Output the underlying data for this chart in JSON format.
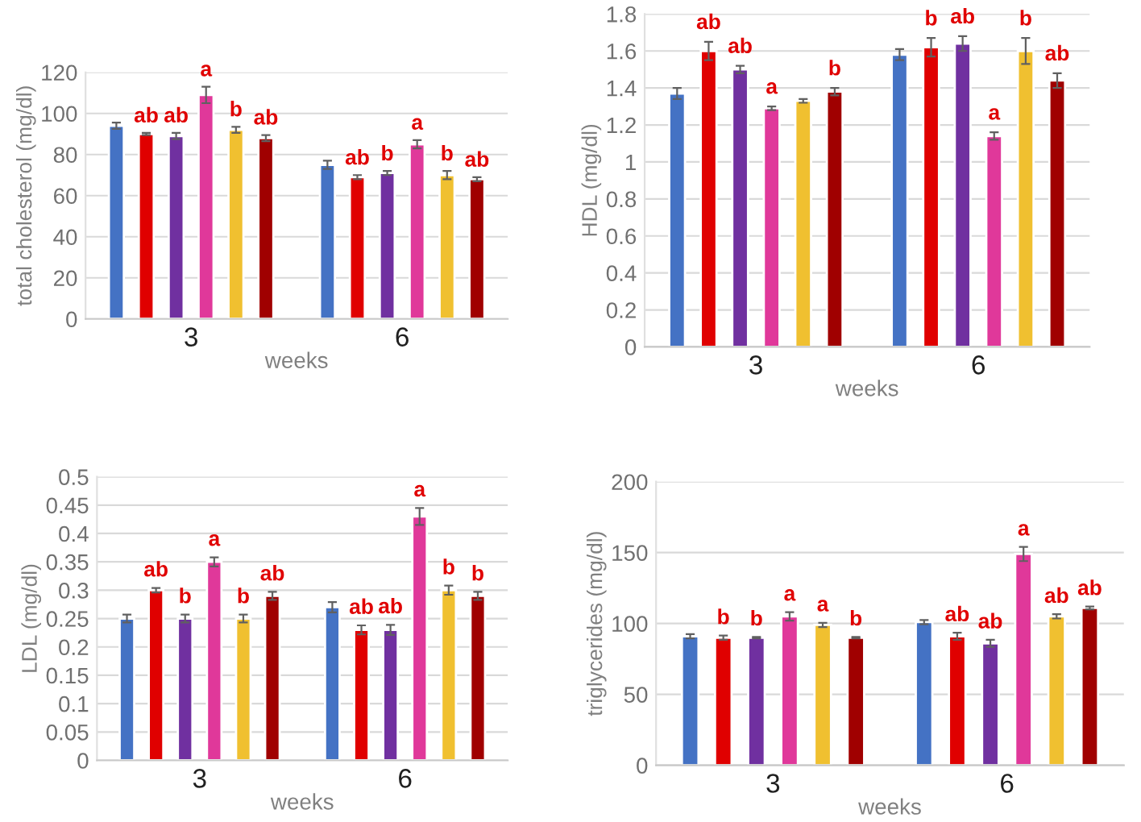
{
  "chart_data": [
    {
      "type": "bar",
      "xlabel": "weeks",
      "ylabel": "total cholesterol (mg/dl)",
      "categories": [
        "3",
        "6"
      ],
      "ylim": [
        0,
        120
      ],
      "yticks": [
        0,
        20,
        40,
        60,
        80,
        100,
        120
      ],
      "grid": "y",
      "legend": false,
      "series": [
        {
          "color": "#4472c4",
          "values": [
            94,
            75
          ],
          "errors": [
            1.5,
            2
          ],
          "value_labels": [
            null,
            null
          ]
        },
        {
          "color": "#e00000",
          "values": [
            90,
            69
          ],
          "errors": [
            0.5,
            1
          ],
          "value_labels": [
            "ab",
            "ab"
          ]
        },
        {
          "color": "#7030a0",
          "values": [
            89,
            71
          ],
          "errors": [
            1.5,
            1
          ],
          "value_labels": [
            "ab",
            "b"
          ]
        },
        {
          "color": "#e0389a",
          "values": [
            109,
            85
          ],
          "errors": [
            4,
            2
          ],
          "value_labels": [
            "a",
            "a"
          ]
        },
        {
          "color": "#f0c030",
          "values": [
            92,
            70
          ],
          "errors": [
            1.5,
            2
          ],
          "value_labels": [
            "b",
            "b"
          ]
        },
        {
          "color": "#a00000",
          "values": [
            88,
            68
          ],
          "errors": [
            1.5,
            1
          ],
          "value_labels": [
            "ab",
            "ab"
          ]
        }
      ]
    },
    {
      "type": "bar",
      "xlabel": "weeks",
      "ylabel": "HDL (mg/dl)",
      "categories": [
        "3",
        "6"
      ],
      "ylim": [
        0,
        1.8
      ],
      "yticks": [
        0,
        0.2,
        0.4,
        0.6,
        0.8,
        1,
        1.2,
        1.4,
        1.6,
        1.8
      ],
      "grid": "y",
      "legend": false,
      "series": [
        {
          "color": "#4472c4",
          "values": [
            1.37,
            1.58
          ],
          "errors": [
            0.03,
            0.03
          ],
          "value_labels": [
            null,
            null
          ]
        },
        {
          "color": "#e00000",
          "values": [
            1.6,
            1.62
          ],
          "errors": [
            0.05,
            0.05
          ],
          "value_labels": [
            "ab",
            "b"
          ]
        },
        {
          "color": "#7030a0",
          "values": [
            1.5,
            1.64
          ],
          "errors": [
            0.02,
            0.04
          ],
          "value_labels": [
            "ab",
            "ab"
          ]
        },
        {
          "color": "#e0389a",
          "values": [
            1.29,
            1.14
          ],
          "errors": [
            0.01,
            0.02
          ],
          "value_labels": [
            "a",
            "a"
          ]
        },
        {
          "color": "#f0c030",
          "values": [
            1.33,
            1.6
          ],
          "errors": [
            0.01,
            0.07
          ],
          "value_labels": [
            null,
            "b"
          ]
        },
        {
          "color": "#a00000",
          "values": [
            1.38,
            1.44
          ],
          "errors": [
            0.02,
            0.04
          ],
          "value_labels": [
            "b",
            "ab"
          ]
        }
      ]
    },
    {
      "type": "bar",
      "xlabel": "weeks",
      "ylabel": "LDL (mg/dl)",
      "categories": [
        "3",
        "6"
      ],
      "ylim": [
        0,
        0.5
      ],
      "yticks": [
        0,
        0.05,
        0.1,
        0.15,
        0.2,
        0.25,
        0.3,
        0.35,
        0.4,
        0.45,
        0.5
      ],
      "grid": "y",
      "legend": false,
      "series": [
        {
          "color": "#4472c4",
          "values": [
            0.25,
            0.27
          ],
          "errors": [
            0.007,
            0.009
          ],
          "value_labels": [
            null,
            null
          ]
        },
        {
          "color": "#e00000",
          "values": [
            0.3,
            0.23
          ],
          "errors": [
            0.004,
            0.008
          ],
          "value_labels": [
            "ab",
            "ab"
          ]
        },
        {
          "color": "#7030a0",
          "values": [
            0.25,
            0.23
          ],
          "errors": [
            0.007,
            0.009
          ],
          "value_labels": [
            "b",
            "ab"
          ]
        },
        {
          "color": "#e0389a",
          "values": [
            0.35,
            0.43
          ],
          "errors": [
            0.008,
            0.015
          ],
          "value_labels": [
            "a",
            "a"
          ]
        },
        {
          "color": "#f0c030",
          "values": [
            0.25,
            0.3
          ],
          "errors": [
            0.007,
            0.008
          ],
          "value_labels": [
            "b",
            "b"
          ]
        },
        {
          "color": "#a00000",
          "values": [
            0.29,
            0.29
          ],
          "errors": [
            0.007,
            0.007
          ],
          "value_labels": [
            "ab",
            "b"
          ]
        }
      ]
    },
    {
      "type": "bar",
      "xlabel": "weeks",
      "ylabel": "triglycerides (mg/dl)",
      "categories": [
        "3",
        "6"
      ],
      "ylim": [
        0,
        200
      ],
      "yticks": [
        0,
        50,
        100,
        150,
        200
      ],
      "grid": "y",
      "legend": false,
      "series": [
        {
          "color": "#4472c4",
          "values": [
            91,
            101
          ],
          "errors": [
            1.5,
            1.5
          ],
          "value_labels": [
            null,
            null
          ]
        },
        {
          "color": "#e00000",
          "values": [
            90,
            91
          ],
          "errors": [
            1.5,
            2.5
          ],
          "value_labels": [
            "b",
            "ab"
          ]
        },
        {
          "color": "#7030a0",
          "values": [
            90,
            86
          ],
          "errors": [
            0.5,
            2.5
          ],
          "value_labels": [
            "b",
            "ab"
          ]
        },
        {
          "color": "#e0389a",
          "values": [
            105,
            149
          ],
          "errors": [
            3,
            5
          ],
          "value_labels": [
            "a",
            "a"
          ]
        },
        {
          "color": "#f0c030",
          "values": [
            99,
            105
          ],
          "errors": [
            1.5,
            1.5
          ],
          "value_labels": [
            "a",
            "ab"
          ]
        },
        {
          "color": "#a00000",
          "values": [
            90,
            111
          ],
          "errors": [
            0.5,
            1
          ],
          "value_labels": [
            "b",
            "ab"
          ]
        }
      ]
    }
  ]
}
